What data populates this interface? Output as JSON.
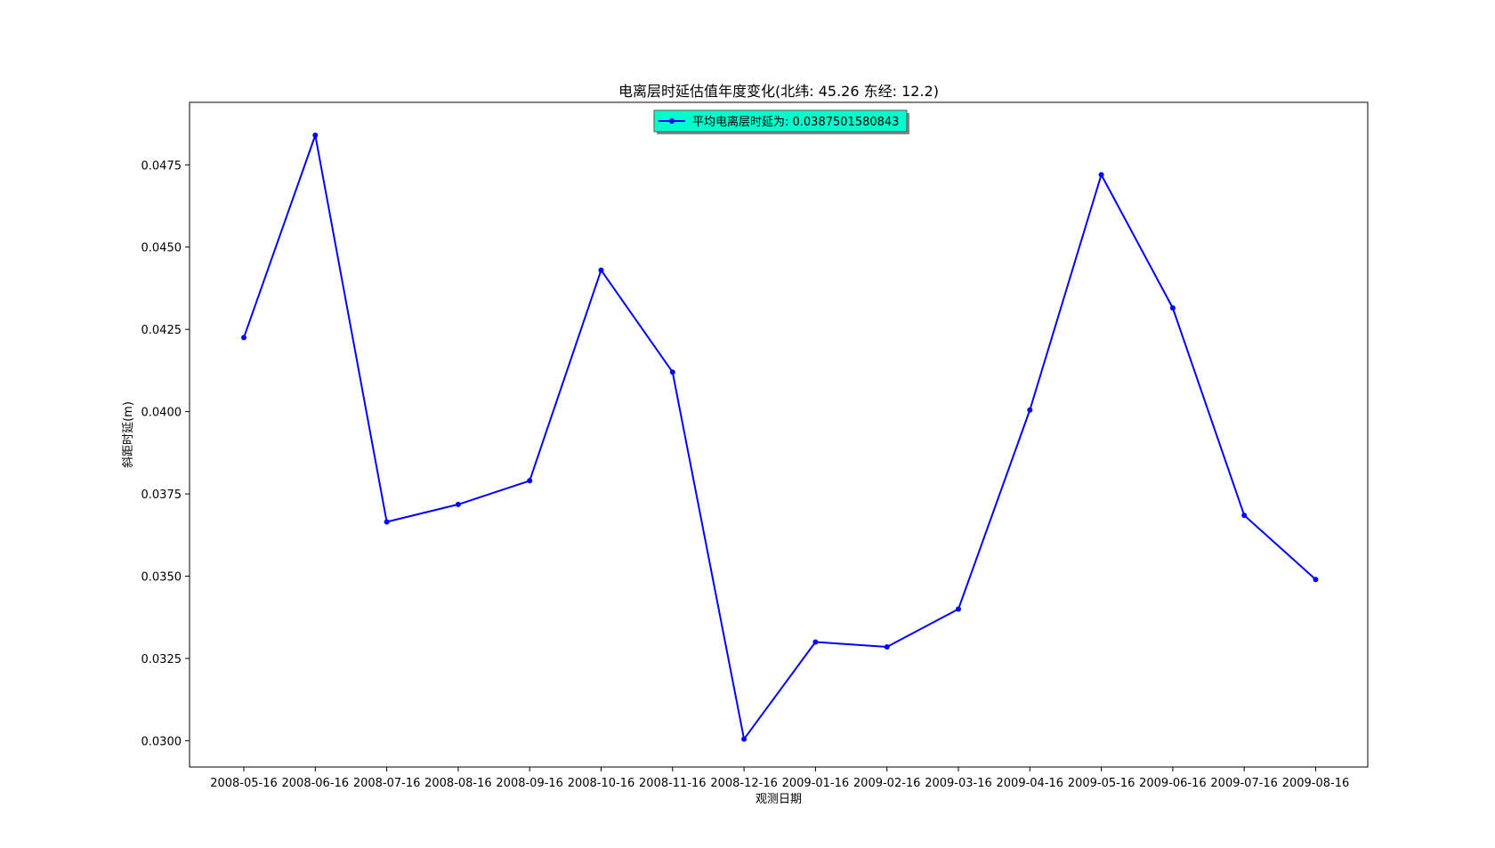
{
  "chart_data": {
    "type": "line",
    "title": "电离层时延估值年度变化(北纬: 45.26 东经: 12.2)",
    "xlabel": "观测日期",
    "ylabel": "斜距时延(m)",
    "categories": [
      "2008-05-16",
      "2008-06-16",
      "2008-07-16",
      "2008-08-16",
      "2008-09-16",
      "2008-10-16",
      "2008-11-16",
      "2008-12-16",
      "2009-01-16",
      "2009-02-16",
      "2009-03-16",
      "2009-04-16",
      "2009-05-16",
      "2009-06-16",
      "2009-07-16",
      "2009-08-16"
    ],
    "series": [
      {
        "name": "平均电离层时延为: 0.0387501580843",
        "color": "#0000ff",
        "values": [
          0.04225,
          0.0484,
          0.03665,
          0.03718,
          0.0379,
          0.0443,
          0.0412,
          0.03005,
          0.033,
          0.03285,
          0.034,
          0.04005,
          0.0472,
          0.04315,
          0.03685,
          0.0349
        ]
      }
    ],
    "yticks": [
      "0.0300",
      "0.0325",
      "0.0350",
      "0.0375",
      "0.0400",
      "0.0425",
      "0.0450",
      "0.0475"
    ],
    "ylim": [
      0.0292,
      0.0494
    ],
    "grid": false,
    "legend": {
      "placement": "top-center",
      "background": "#00ffcc"
    }
  }
}
